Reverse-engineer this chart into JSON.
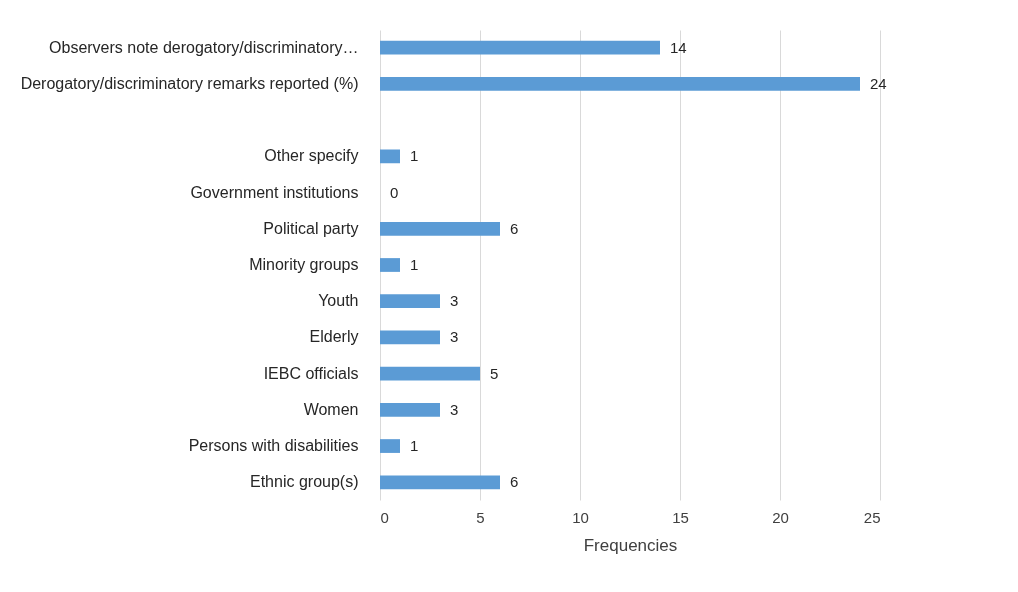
{
  "chart_data": {
    "type": "bar",
    "orientation": "horizontal",
    "categories": [
      "Observers note derogatory/discriminatory…",
      "Derogatory/discriminatory remarks reported (%)",
      null,
      "Other specify",
      "Government institutions",
      "Political party",
      "Minority groups",
      "Youth",
      "Elderly",
      "IEBC officials",
      "Women",
      "Persons with disabilities",
      "Ethnic group(s)"
    ],
    "values": [
      14,
      24,
      null,
      1,
      0,
      6,
      1,
      3,
      3,
      5,
      3,
      1,
      6
    ],
    "color": "#5b9bd5",
    "xlabel": "Frequencies",
    "xlim": [
      0,
      25
    ],
    "xticks": [
      0,
      5,
      10,
      15,
      20,
      25
    ],
    "grid": "x",
    "data_labels": true
  }
}
